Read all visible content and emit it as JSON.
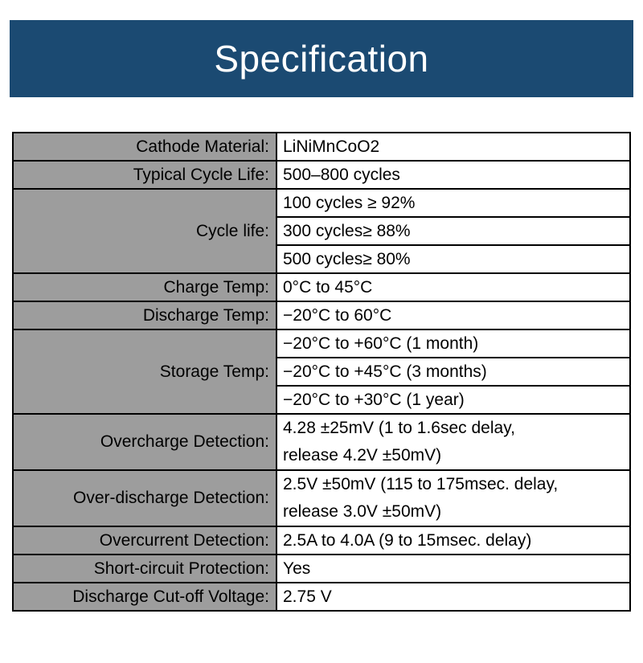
{
  "header": {
    "title": "Specification"
  },
  "colors": {
    "banner": "#1b4a72",
    "label_bg": "#9d9d9d",
    "border": "#000000"
  },
  "table": {
    "rows": [
      {
        "label": "Cathode Material:",
        "value": "LiNiMnCoO2"
      },
      {
        "label": "Typical Cycle Life:",
        "value": "500–800 cycles"
      },
      {
        "label": "Cycle life:",
        "values": [
          "100 cycles ≥ 92%",
          "300 cycles≥ 88%",
          "500 cycles≥ 80%"
        ]
      },
      {
        "label": "Charge Temp:",
        "value": "0°C to 45°C"
      },
      {
        "label": "Discharge Temp:",
        "value": "−20°C to 60°C"
      },
      {
        "label": "Storage Temp:",
        "values": [
          "−20°C to +60°C (1 month)",
          "−20°C to +45°C (3 months)",
          "−20°C to +30°C (1 year)"
        ]
      },
      {
        "label": "Overcharge Detection:",
        "lines": [
          "4.28 ±25mV (1 to 1.6sec delay,",
          "release 4.2V ±50mV)"
        ]
      },
      {
        "label": "Over-discharge Detection:",
        "lines": [
          "2.5V ±50mV (115 to 175msec. delay,",
          "release 3.0V ±50mV)"
        ]
      },
      {
        "label": "Overcurrent Detection:",
        "value": "2.5A to 4.0A (9 to 15msec. delay)"
      },
      {
        "label": "Short-circuit Protection:",
        "value": "Yes"
      },
      {
        "label": "Discharge Cut-off Voltage:",
        "value": "2.75 V"
      }
    ]
  }
}
